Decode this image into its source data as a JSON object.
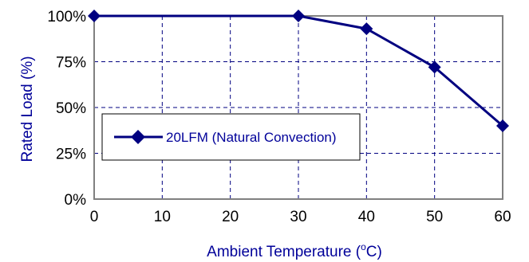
{
  "chart_data": {
    "type": "line",
    "x": [
      0,
      30,
      40,
      50,
      60
    ],
    "series": [
      {
        "name": "20LFM (Natural Convection)",
        "values": [
          100,
          100,
          93,
          72,
          40
        ]
      }
    ],
    "xlabel": "Ambient Temperature (",
    "xlabel_sup": "o",
    "xlabel_end": "C)",
    "ylabel": "Rated Load (%)",
    "xlim": [
      0,
      60
    ],
    "ylim": [
      0,
      100
    ],
    "xticks": [
      "0",
      "10",
      "20",
      "30",
      "40",
      "50",
      "60"
    ],
    "yticks": [
      "0%",
      "25%",
      "50%",
      "75%",
      "100%"
    ],
    "grid": true,
    "legend": "middle-left",
    "colors": {
      "series": "#000080",
      "frame": "#808080",
      "grid": "#000080",
      "axis_title": "#000099"
    }
  }
}
